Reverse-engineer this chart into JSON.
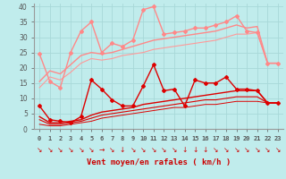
{
  "background_color": "#c0ecec",
  "grid_color": "#a8d8d8",
  "xlabel": "Vent moyen/en rafales ( km/h )",
  "xlabel_color": "#cc0000",
  "ylim": [
    0,
    41
  ],
  "yticks": [
    0,
    5,
    10,
    15,
    20,
    25,
    30,
    35,
    40
  ],
  "line_dark1": {
    "y": [
      7.5,
      3.0,
      2.5,
      2.0,
      4.0,
      16.0,
      13.0,
      9.5,
      7.5,
      7.5,
      14.0,
      21.0,
      12.5,
      13.0,
      7.5,
      16.0,
      15.0,
      15.0,
      17.0,
      13.0,
      13.0,
      12.5,
      8.5,
      8.5
    ],
    "color": "#dd0000",
    "lw": 1.0
  },
  "line_dark2": {
    "y": [
      4.0,
      2.0,
      2.0,
      2.5,
      3.0,
      4.5,
      5.5,
      6.0,
      6.5,
      7.0,
      8.0,
      8.5,
      9.0,
      9.5,
      10.0,
      10.5,
      11.0,
      11.5,
      12.0,
      12.5,
      12.5,
      12.5,
      8.5,
      8.5
    ],
    "color": "#dd0000",
    "lw": 1.0
  },
  "line_dark3": {
    "y": [
      3.0,
      1.5,
      1.5,
      2.0,
      2.5,
      3.5,
      4.5,
      5.0,
      5.5,
      6.0,
      6.5,
      7.0,
      7.5,
      8.0,
      8.5,
      9.0,
      9.5,
      9.5,
      10.0,
      10.5,
      10.5,
      10.5,
      8.5,
      8.5
    ],
    "color": "#dd0000",
    "lw": 0.8
  },
  "line_dark4": {
    "y": [
      1.5,
      1.0,
      1.0,
      1.5,
      2.0,
      2.5,
      3.5,
      4.0,
      4.5,
      5.0,
      5.5,
      6.0,
      6.5,
      7.0,
      7.0,
      7.5,
      8.0,
      8.0,
      8.5,
      9.0,
      9.0,
      9.0,
      8.5,
      8.5
    ],
    "color": "#dd0000",
    "lw": 0.7
  },
  "line_light1": {
    "y": [
      24.5,
      15.5,
      13.5,
      25.0,
      32.0,
      35.0,
      25.0,
      28.0,
      27.0,
      29.0,
      39.0,
      40.0,
      31.0,
      31.5,
      32.0,
      33.0,
      33.0,
      34.0,
      35.0,
      37.0,
      32.0,
      31.5,
      21.5,
      21.5
    ],
    "color": "#ff8888",
    "lw": 1.0
  },
  "line_light2": {
    "y": [
      15.5,
      19.0,
      18.0,
      21.0,
      24.0,
      25.0,
      24.5,
      25.0,
      26.0,
      27.0,
      28.0,
      29.0,
      29.5,
      30.0,
      30.5,
      31.0,
      31.5,
      32.0,
      33.0,
      34.0,
      33.0,
      33.5,
      21.5,
      21.5
    ],
    "color": "#ff8888",
    "lw": 1.0
  },
  "line_light3": {
    "y": [
      13.5,
      17.0,
      16.0,
      18.5,
      21.5,
      23.0,
      22.5,
      23.0,
      24.0,
      24.5,
      25.0,
      26.0,
      26.5,
      27.0,
      27.5,
      28.0,
      28.5,
      29.0,
      30.0,
      31.0,
      31.0,
      31.5,
      21.5,
      21.5
    ],
    "color": "#ff9999",
    "lw": 0.8
  },
  "wind_arrow_chars": [
    "↘",
    "↘",
    "↘",
    "↘",
    "↘",
    "↘",
    "→",
    "↘",
    "↓",
    "↘",
    "↘",
    "↘",
    "↘",
    "↘",
    "↓",
    "↓",
    "↓",
    "↘",
    "↘",
    "↘",
    "↘",
    "↘",
    "↘",
    "↘"
  ]
}
